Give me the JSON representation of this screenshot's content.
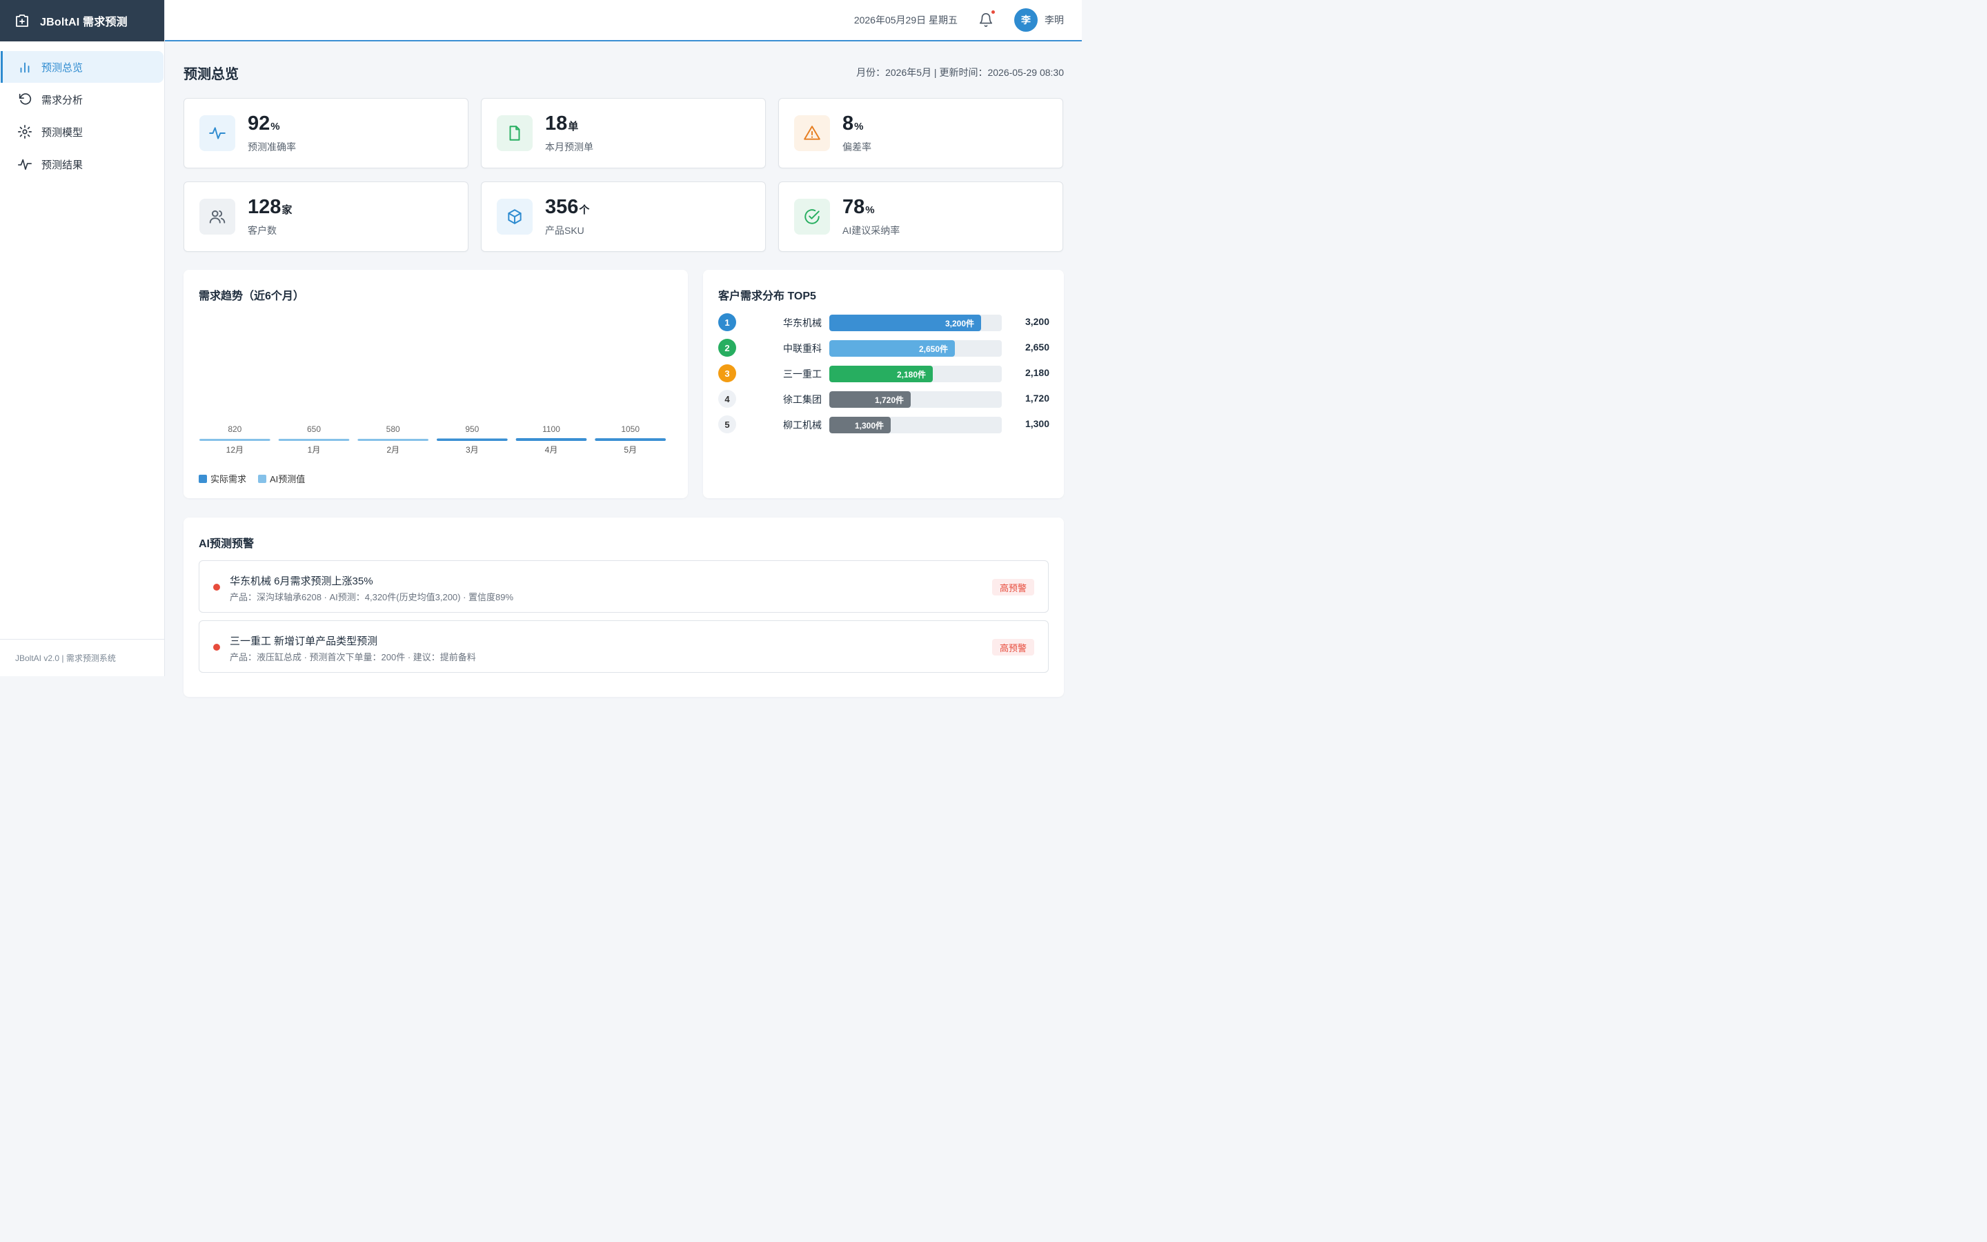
{
  "app": {
    "title": "JBoltAI 需求预测"
  },
  "sidebar": {
    "items": [
      {
        "label": "预测总览",
        "icon": "bar-chart-icon",
        "active": true
      },
      {
        "label": "需求分析",
        "icon": "refresh-icon",
        "active": false
      },
      {
        "label": "预测模型",
        "icon": "gear-icon",
        "active": false
      },
      {
        "label": "预测结果",
        "icon": "activity-icon",
        "active": false
      }
    ],
    "footer": "JBoltAI v2.0 | 需求预测系统"
  },
  "header": {
    "date": "2026年05月29日 星期五",
    "avatar_initial": "李",
    "username": "李明",
    "accent_color": "#2e8bd0"
  },
  "page": {
    "title": "预测总览",
    "meta": "月份：2026年5月  |  更新时间：2026-05-29 08:30"
  },
  "stats": [
    {
      "value": "92",
      "unit": "%",
      "label": "预测准确率",
      "icon": "pulse-icon",
      "color": "#2e8bd0"
    },
    {
      "value": "18",
      "unit": "单",
      "label": "本月预测单",
      "icon": "document-icon",
      "color": "#27ae60"
    },
    {
      "value": "8",
      "unit": "%",
      "label": "偏差率",
      "icon": "warning-icon",
      "color": "#e67e22"
    },
    {
      "value": "128",
      "unit": "家",
      "label": "客户数",
      "icon": "users-icon",
      "color": "#5a6470"
    },
    {
      "value": "356",
      "unit": "个",
      "label": "产品SKU",
      "icon": "cube-icon",
      "color": "#2e8bd0"
    },
    {
      "value": "78",
      "unit": "%",
      "label": "AI建议采纳率",
      "icon": "check-circle-icon",
      "color": "#27ae60"
    }
  ],
  "trend": {
    "title": "需求趋势（近6个月）",
    "legend": [
      {
        "name": "实际需求",
        "color": "#3a8fd3"
      },
      {
        "name": "AI预测值",
        "color": "#85c1e9"
      }
    ]
  },
  "chart_data": {
    "type": "bar",
    "categories": [
      "12月",
      "1月",
      "2月",
      "3月",
      "4月",
      "5月"
    ],
    "values": [
      820,
      650,
      580,
      950,
      1100,
      1050
    ],
    "bar_colors": [
      "#85c1e9",
      "#85c1e9",
      "#85c1e9",
      "#3a8fd3",
      "#3a8fd3",
      "#3a8fd3"
    ],
    "series": [
      {
        "name": "实际需求",
        "color": "#3a8fd3"
      },
      {
        "name": "AI预测值",
        "color": "#85c1e9"
      }
    ],
    "title": "需求趋势（近6个月）",
    "xlabel": "",
    "ylabel": ""
  },
  "top5": {
    "title": "客户需求分布 TOP5",
    "max": 3200,
    "items": [
      {
        "rank": "1",
        "name": "华东机械",
        "value": 3200,
        "value_text": "3,200",
        "bar_label": "3,200件",
        "rank_color": "#2e8bd0",
        "bar_color": "#3a8fd3"
      },
      {
        "rank": "2",
        "name": "中联重科",
        "value": 2650,
        "value_text": "2,650",
        "bar_label": "2,650件",
        "rank_color": "#27ae60",
        "bar_color": "#5dade2"
      },
      {
        "rank": "3",
        "name": "三一重工",
        "value": 2180,
        "value_text": "2,180",
        "bar_label": "2,180件",
        "rank_color": "#f39c12",
        "bar_color": "#27ae60"
      },
      {
        "rank": "4",
        "name": "徐工集团",
        "value": 1720,
        "value_text": "1,720",
        "bar_label": "1,720件",
        "rank_color": "",
        "bar_color": "#6c757d"
      },
      {
        "rank": "5",
        "name": "柳工机械",
        "value": 1300,
        "value_text": "1,300",
        "bar_label": "1,300件",
        "rank_color": "",
        "bar_color": "#6c757d"
      }
    ]
  },
  "alerts": {
    "title": "AI预测预警",
    "items": [
      {
        "title": "华东机械 6月需求预测上涨35%",
        "desc": "产品：深沟球轴承6208 · AI预测：4,320件(历史均值3,200) · 置信度89%",
        "badge": "高预警"
      },
      {
        "title": "三一重工 新增订单产品类型预测",
        "desc": "产品：液压缸总成 · 预测首次下单量：200件 · 建议：提前备料",
        "badge": "高预警"
      }
    ]
  }
}
